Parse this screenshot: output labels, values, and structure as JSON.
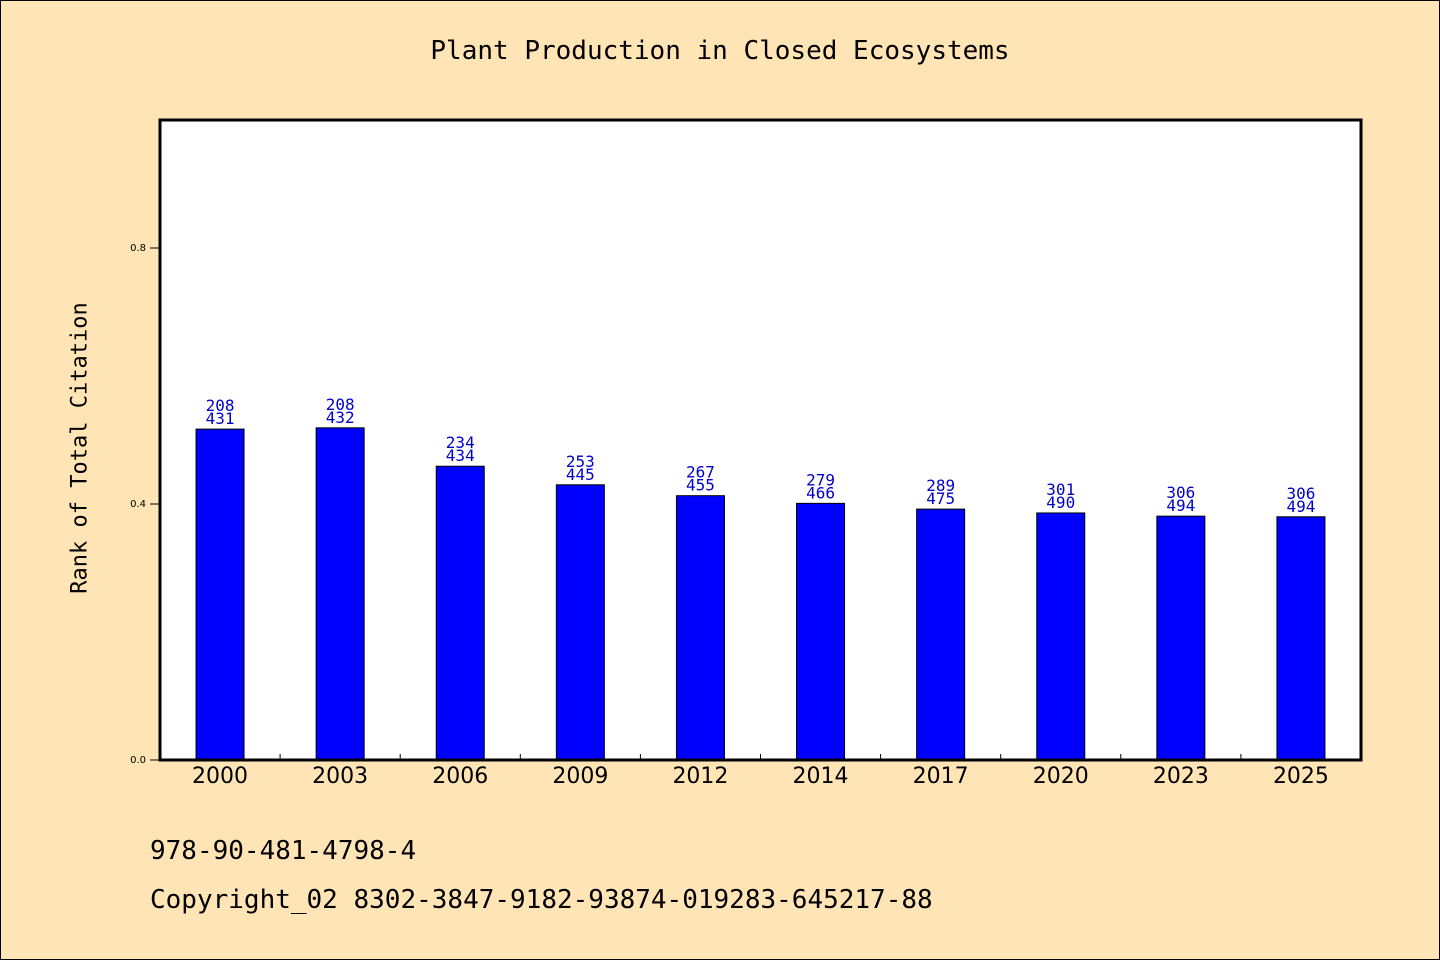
{
  "chart_data": {
    "type": "bar",
    "title": "Plant Production in Closed Ecosystems",
    "xlabel": "",
    "ylabel": "Rank of Total Citation",
    "ylim": [
      0,
      1.0
    ],
    "yticks": [
      "0.0",
      "0.4",
      "0.8"
    ],
    "grid": false,
    "categories": [
      "2000",
      "2003",
      "2006",
      "2009",
      "2012",
      "2014",
      "2017",
      "2020",
      "2023",
      "2025"
    ],
    "values": [
      0.517,
      0.519,
      0.459,
      0.43,
      0.413,
      0.401,
      0.392,
      0.386,
      0.381,
      0.38
    ],
    "label_top": [
      "208",
      "208",
      "234",
      "253",
      "267",
      "279",
      "289",
      "301",
      "306",
      "306"
    ],
    "label_bottom": [
      "431",
      "432",
      "434",
      "445",
      "455",
      "466",
      "475",
      "490",
      "494",
      "494"
    ],
    "bar_color": "#0000FF",
    "label_color": "#0000CC"
  },
  "footer": {
    "isbn": "978-90-481-4798-4",
    "copyright": "Copyright_02 8302-3847-9182-93874-019283-645217-88"
  },
  "colors": {
    "background": "#FFE4B5",
    "plot_background": "#FFFFFF"
  }
}
